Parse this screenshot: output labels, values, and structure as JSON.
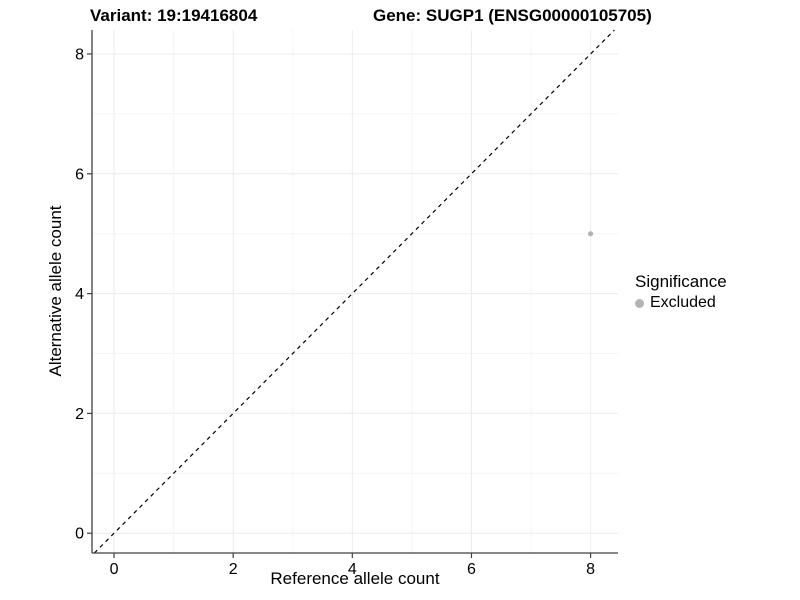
{
  "chart_data": {
    "type": "scatter",
    "title_left": "Variant: 19:19416804",
    "title_right": "Gene: SUGP1 (ENSG00000105705)",
    "xlabel": "Reference allele count",
    "ylabel": "Alternative allele count",
    "xticks": [
      0,
      2,
      4,
      6,
      8
    ],
    "yticks": [
      0,
      2,
      4,
      6,
      8
    ],
    "xminor": [
      1,
      3,
      5,
      7
    ],
    "yminor": [
      1,
      3,
      5,
      7
    ],
    "xlim": [
      -0.37,
      8.46
    ],
    "ylim": [
      -0.33,
      8.4
    ],
    "grid": true,
    "identity_line": {
      "style": "dashed",
      "slope": 1,
      "intercept": 0,
      "color": "#000000"
    },
    "points": [
      {
        "x": 8,
        "y": 5,
        "significance": "Excluded"
      }
    ],
    "legend": {
      "title": "Significance",
      "position": "right",
      "entries": [
        {
          "label": "Excluded",
          "color": "#b3b3b3"
        }
      ]
    },
    "colors": {
      "point": "#b3b3b3",
      "axis": "#404040",
      "grid_major": "#ececec",
      "grid_minor": "#f5f5f5",
      "text": "#000000",
      "background": "#ffffff"
    }
  }
}
